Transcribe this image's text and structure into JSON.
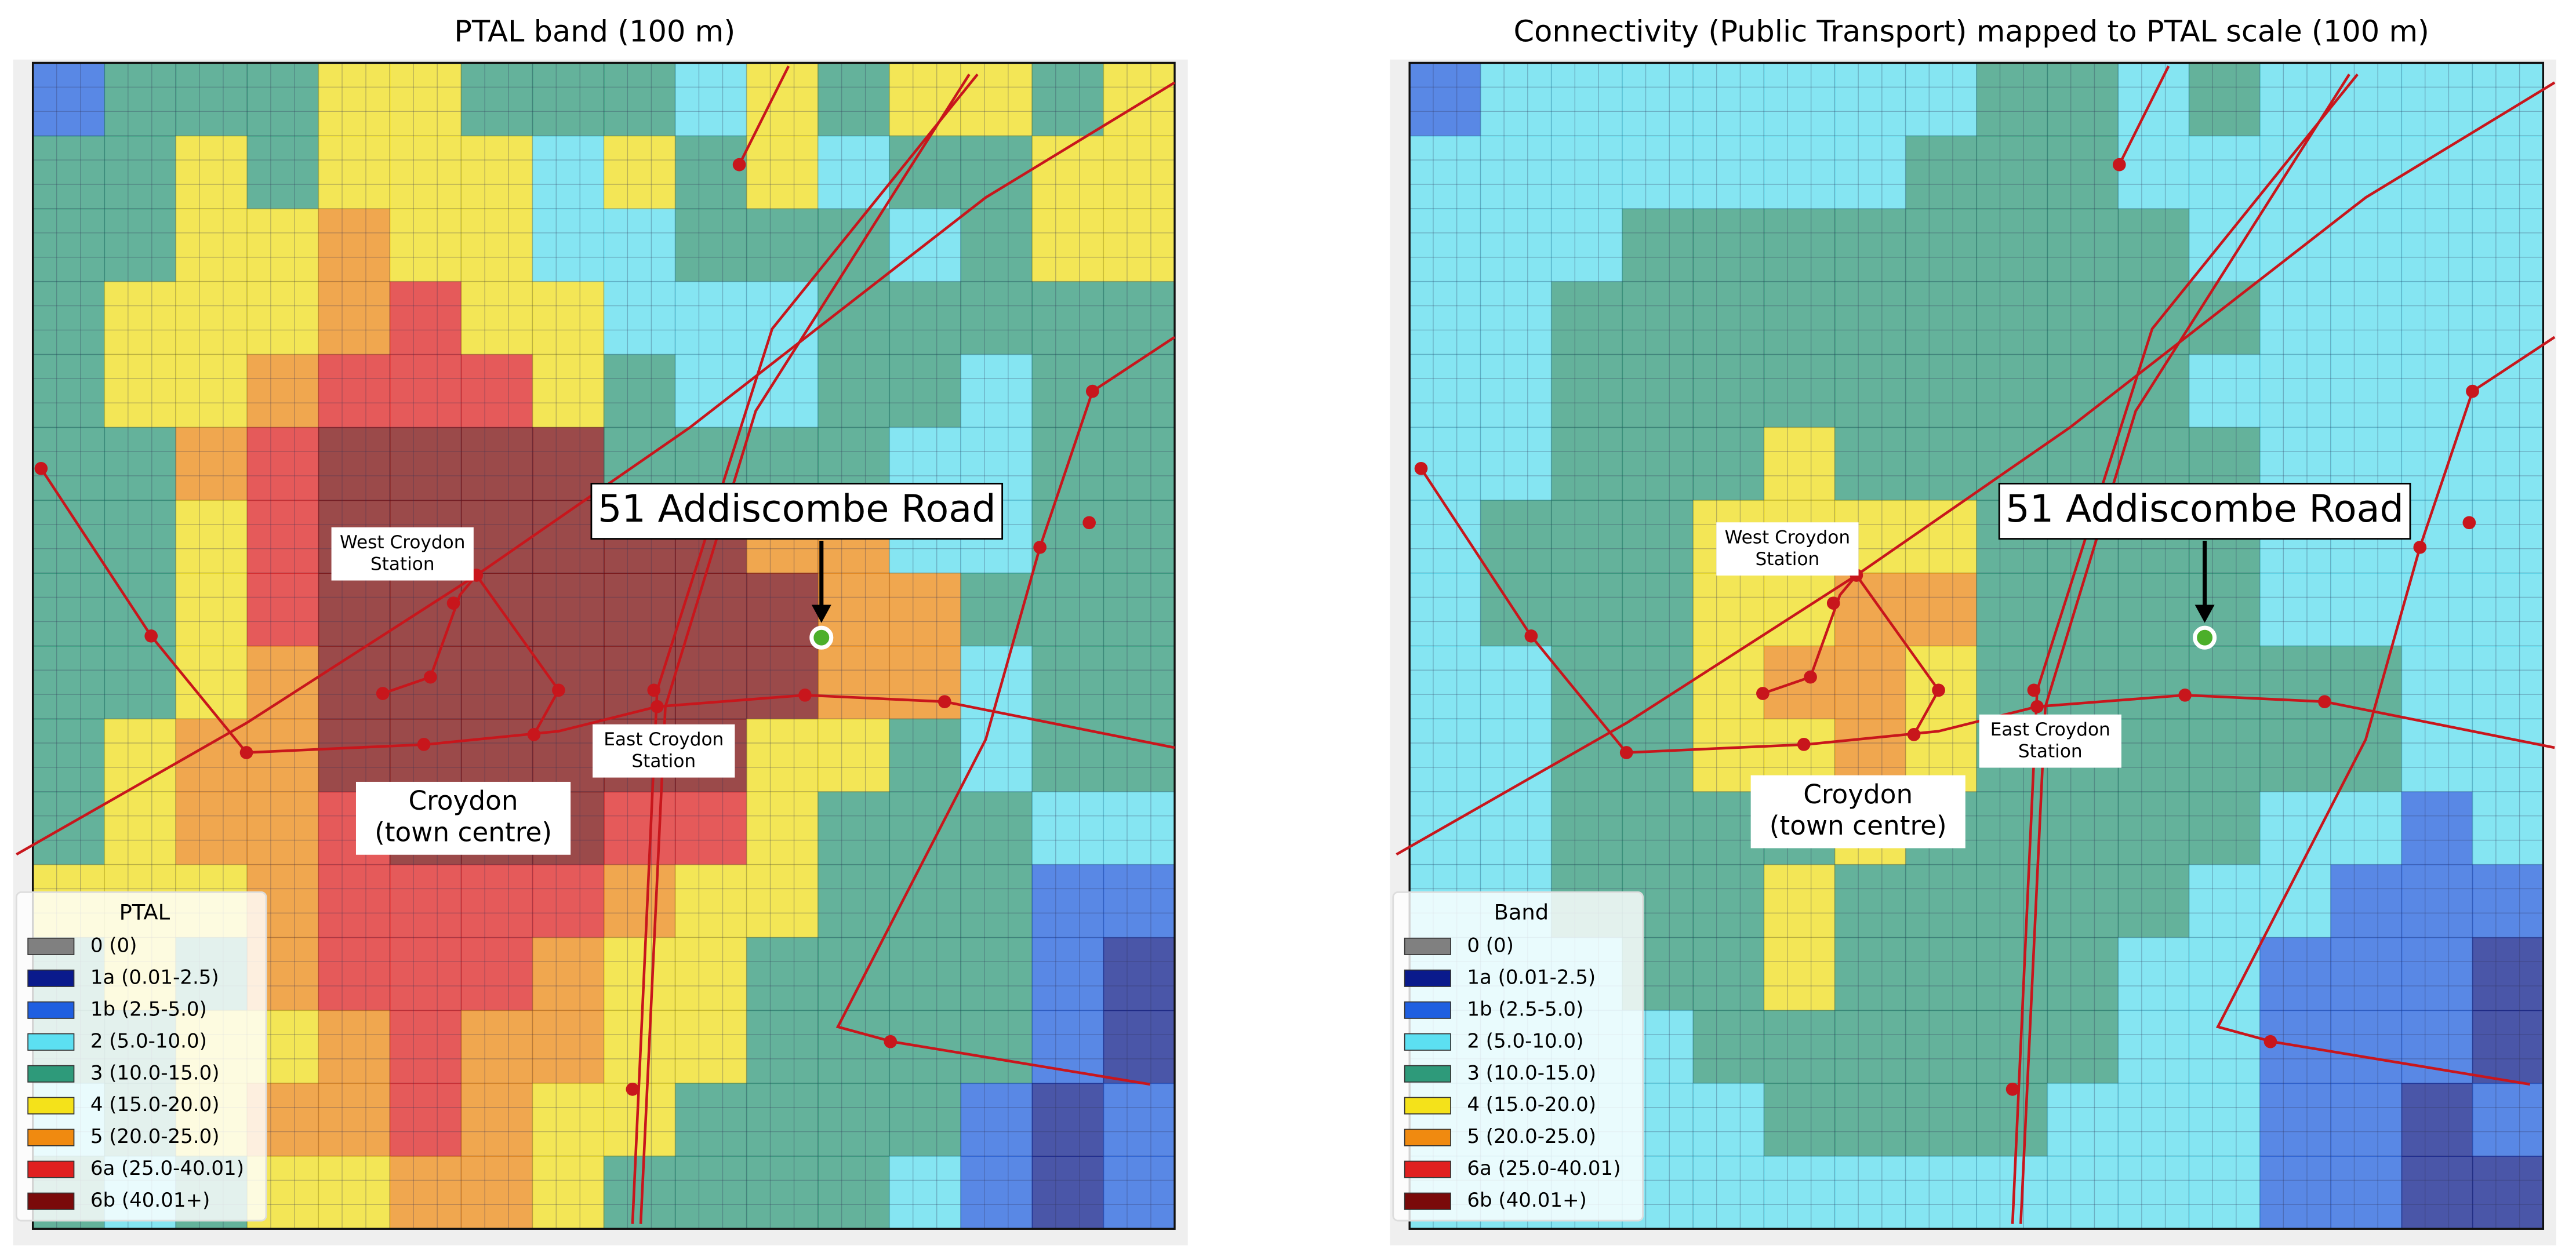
{
  "legend_items": [
    {
      "label": "0 (0)",
      "color": "#808080"
    },
    {
      "label": "1a (0.01-2.5)",
      "color": "#0a1a8c"
    },
    {
      "label": "1b (2.5-5.0)",
      "color": "#1f5fe0"
    },
    {
      "label": "2 (5.0-10.0)",
      "color": "#5ce0f2"
    },
    {
      "label": "3 (10.0-15.0)",
      "color": "#2e9a7a"
    },
    {
      "label": "4 (15.0-20.0)",
      "color": "#f4e21a"
    },
    {
      "label": "5 (20.0-25.0)",
      "color": "#f08a10"
    },
    {
      "label": "6a (25.0-40.01)",
      "color": "#e02020"
    },
    {
      "label": "6b (40.01+)",
      "color": "#7a0a0a"
    }
  ],
  "maps": [
    {
      "title": "PTAL band (100 m)",
      "legend_title": "PTAL",
      "site_label": "51 Addiscombe Road",
      "west_croydon": [
        "West Croydon",
        "Station"
      ],
      "east_croydon": [
        "East Croydon",
        "Station"
      ],
      "town_centre": [
        "Croydon",
        "(town centre)"
      ],
      "grid": [
        "2444554443545545",
        "4454555354534455",
        "4455655334443455",
        "4555675533344444",
        "4556777543344344",
        "4467888844443344",
        "4457888888663344",
        "4457888888866444",
        "4456888888866344",
        "4566888888554344",
        "4566788877544433",
        "5556777765544422",
        "4546777655444421",
        "4455676655444421",
        "3456676554444212",
        "4345566544443212"
      ]
    },
    {
      "title": "Connectivity (Public Transport) mapped to PTAL scale (100 m)",
      "legend_title": "Band",
      "site_label": "51 Addiscombe Road",
      "west_croydon": [
        "West Croydon",
        "Station"
      ],
      "east_croydon": [
        "East Croydon",
        "Station"
      ],
      "town_centre": [
        "Croydon",
        "(town centre)"
      ],
      "grid": [
        "2333333344343333",
        "3333333444333333",
        "3334444444433333",
        "3344444444443333",
        "3344444444433333",
        "3344454444443333",
        "3444555544443333",
        "3444556644443333",
        "3344566544444433",
        "3344556544444433",
        "3344445444443323",
        "3344454444433222",
        "3334454444332221",
        "3333444444332221",
        "3333344443332212",
        "3333333333332211"
      ]
    }
  ]
}
